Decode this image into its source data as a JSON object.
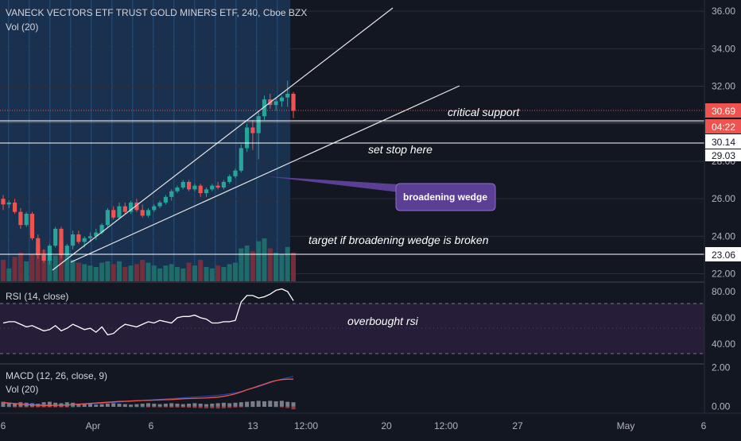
{
  "header": {
    "title": "VANECK VECTORS ETF TRUST GOLD MINERS ETF, 240, Cboe BZX",
    "vol_label": "Vol (20)"
  },
  "price_axis": {
    "ticks": [
      "36.00",
      "34.00",
      "32.00",
      "28.00",
      "26.00",
      "24.00",
      "22.00"
    ],
    "tags": {
      "last_price": "30.69",
      "countdown": "04:22",
      "level_30_14": "30.14",
      "level_29_03": "29.03",
      "level_23_06": "23.06"
    }
  },
  "time_axis": {
    "labels": [
      "6",
      "Apr",
      "6",
      "13",
      "12:00",
      "20",
      "12:00",
      "27",
      "May",
      "6"
    ]
  },
  "rsi_pane": {
    "label": "RSI (14, close)",
    "ticks": [
      "80.00",
      "60.00",
      "40.00"
    ]
  },
  "macd_pane": {
    "label": "MACD (12, 26, close, 9)",
    "vol_label": "Vol (20)",
    "ticks": [
      "2.00",
      "0.00"
    ]
  },
  "annotations": {
    "critical_support": "critical support",
    "set_stop": "set stop here",
    "broadening_wedge": "broadening wedge",
    "target": "target if broadening wedge is broken",
    "overbought": "overbought rsi"
  },
  "colors": {
    "background": "#131722",
    "up": "#26a69a",
    "down": "#ef5350",
    "wedge_callout": "#5b3f94",
    "highlight_band": "#1c3a5e",
    "rsi_band": "#2a1f3d",
    "macd_line": "#ef5350",
    "signal_line": "#2962ff",
    "level_line": "#ffffff"
  },
  "chart_data": [
    {
      "type": "candlestick",
      "title": "VANECK VECTORS ETF TRUST GOLD MINERS ETF, 240, Cboe BZX",
      "ylim": [
        21.6,
        36.6
      ],
      "horizontal_levels": [
        30.69,
        30.14,
        29.03,
        23.06
      ],
      "ohlc": [
        [
          26.0,
          26.2,
          25.4,
          25.7
        ],
        [
          25.7,
          25.9,
          25.5,
          25.8
        ],
        [
          25.8,
          26.0,
          25.2,
          25.3
        ],
        [
          25.3,
          25.5,
          24.4,
          24.6
        ],
        [
          24.6,
          25.3,
          24.5,
          25.2
        ],
        [
          25.2,
          25.3,
          23.8,
          23.9
        ],
        [
          23.9,
          24.1,
          22.8,
          23.0
        ],
        [
          23.0,
          23.3,
          22.6,
          22.7
        ],
        [
          22.7,
          23.6,
          22.5,
          23.5
        ],
        [
          23.5,
          24.5,
          23.4,
          24.4
        ],
        [
          24.4,
          24.5,
          22.8,
          23.0
        ],
        [
          23.0,
          23.6,
          22.9,
          23.5
        ],
        [
          23.5,
          24.3,
          23.3,
          24.1
        ],
        [
          24.1,
          24.3,
          23.6,
          23.7
        ],
        [
          23.7,
          24.0,
          23.4,
          23.9
        ],
        [
          23.9,
          24.2,
          23.7,
          24.0
        ],
        [
          24.0,
          24.4,
          23.8,
          24.2
        ],
        [
          24.2,
          24.7,
          24.1,
          24.6
        ],
        [
          24.6,
          25.5,
          24.5,
          25.4
        ],
        [
          25.4,
          25.6,
          24.9,
          25.0
        ],
        [
          25.0,
          25.8,
          24.9,
          25.6
        ],
        [
          25.6,
          25.8,
          25.2,
          25.3
        ],
        [
          25.3,
          25.9,
          25.2,
          25.8
        ],
        [
          25.8,
          26.0,
          25.3,
          25.4
        ],
        [
          25.4,
          25.7,
          25.0,
          25.1
        ],
        [
          25.1,
          25.5,
          25.0,
          25.4
        ],
        [
          25.4,
          25.7,
          25.3,
          25.6
        ],
        [
          25.6,
          25.9,
          25.5,
          25.8
        ],
        [
          25.8,
          26.2,
          25.7,
          26.1
        ],
        [
          26.1,
          26.5,
          25.9,
          26.4
        ],
        [
          26.4,
          26.7,
          26.3,
          26.6
        ],
        [
          26.6,
          27.0,
          26.5,
          26.9
        ],
        [
          26.9,
          27.0,
          26.4,
          26.5
        ],
        [
          26.5,
          26.8,
          26.4,
          26.7
        ],
        [
          26.7,
          26.8,
          26.1,
          26.3
        ],
        [
          26.3,
          26.6,
          26.1,
          26.5
        ],
        [
          26.5,
          26.8,
          26.4,
          26.7
        ],
        [
          26.7,
          26.9,
          26.5,
          26.6
        ],
        [
          26.6,
          27.0,
          26.5,
          26.9
        ],
        [
          26.9,
          27.3,
          26.8,
          27.2
        ],
        [
          27.2,
          27.6,
          27.1,
          27.5
        ],
        [
          27.5,
          28.9,
          27.4,
          28.7
        ],
        [
          28.7,
          30.0,
          28.5,
          29.8
        ],
        [
          29.8,
          30.2,
          28.6,
          29.5
        ],
        [
          29.5,
          30.6,
          28.1,
          30.4
        ],
        [
          30.4,
          31.5,
          30.2,
          31.3
        ],
        [
          31.3,
          31.6,
          30.8,
          31.0
        ],
        [
          31.0,
          31.4,
          30.7,
          31.2
        ],
        [
          31.2,
          31.5,
          30.9,
          31.4
        ],
        [
          31.4,
          32.3,
          30.9,
          31.6
        ],
        [
          31.6,
          31.7,
          30.3,
          30.69
        ]
      ]
    },
    {
      "type": "line",
      "title": "RSI (14, close)",
      "ylim": [
        26,
        86
      ],
      "bands": [
        70,
        30
      ],
      "values": [
        56,
        57,
        57,
        55,
        53,
        54,
        52,
        50,
        51,
        54,
        50,
        52,
        55,
        53,
        51,
        52,
        49,
        53,
        47,
        48,
        52,
        55,
        54,
        53,
        55,
        57,
        56,
        58,
        57,
        56,
        60,
        61,
        61,
        62,
        60,
        59,
        56,
        56,
        57,
        57,
        58,
        72,
        77,
        77,
        75,
        76,
        78,
        81,
        82,
        80,
        73
      ]
    },
    {
      "type": "line",
      "title": "MACD (12, 26, close, 9)",
      "ylim": [
        -0.3,
        2.1
      ],
      "series": [
        {
          "name": "MACD",
          "values": [
            0.2,
            0.18,
            0.15,
            0.12,
            0.1,
            0.08,
            0.06,
            0.05,
            0.05,
            0.06,
            0.07,
            0.08,
            0.1,
            0.12,
            0.14,
            0.16,
            0.18,
            0.2,
            0.22,
            0.24,
            0.26,
            0.27,
            0.28,
            0.3,
            0.31,
            0.32,
            0.33,
            0.34,
            0.35,
            0.36,
            0.38,
            0.4,
            0.41,
            0.42,
            0.43,
            0.44,
            0.46,
            0.48,
            0.52,
            0.58,
            0.65,
            0.75,
            0.86,
            0.95,
            1.05,
            1.15,
            1.25,
            1.33,
            1.38,
            1.4,
            1.4
          ]
        },
        {
          "name": "Signal",
          "values": [
            0.18,
            0.17,
            0.16,
            0.14,
            0.13,
            0.11,
            0.1,
            0.09,
            0.08,
            0.08,
            0.08,
            0.09,
            0.1,
            0.11,
            0.12,
            0.14,
            0.15,
            0.17,
            0.19,
            0.21,
            0.23,
            0.25,
            0.27,
            0.29,
            0.31,
            0.33,
            0.35,
            0.37,
            0.39,
            0.41,
            0.43,
            0.45,
            0.47,
            0.49,
            0.51,
            0.53,
            0.55,
            0.58,
            0.61,
            0.65,
            0.7,
            0.77,
            0.85,
            0.93,
            1.02,
            1.12,
            1.22,
            1.32,
            1.4,
            1.48,
            1.54
          ]
        }
      ],
      "histogram": [
        0.02,
        0.01,
        -0.01,
        -0.02,
        -0.03,
        -0.03,
        -0.04,
        -0.04,
        -0.03,
        -0.02,
        -0.01,
        -0.01,
        0.0,
        0.01,
        0.02,
        0.02,
        0.03,
        0.03,
        0.03,
        0.03,
        0.03,
        0.02,
        0.01,
        0.01,
        0.0,
        -0.01,
        -0.02,
        -0.03,
        -0.04,
        -0.05,
        -0.05,
        -0.05,
        -0.06,
        -0.07,
        -0.08,
        -0.09,
        -0.09,
        -0.1,
        -0.09,
        -0.07,
        -0.05,
        -0.02,
        0.01,
        0.02,
        0.03,
        0.03,
        0.03,
        0.01,
        -0.02,
        -0.08,
        -0.14
      ]
    }
  ]
}
